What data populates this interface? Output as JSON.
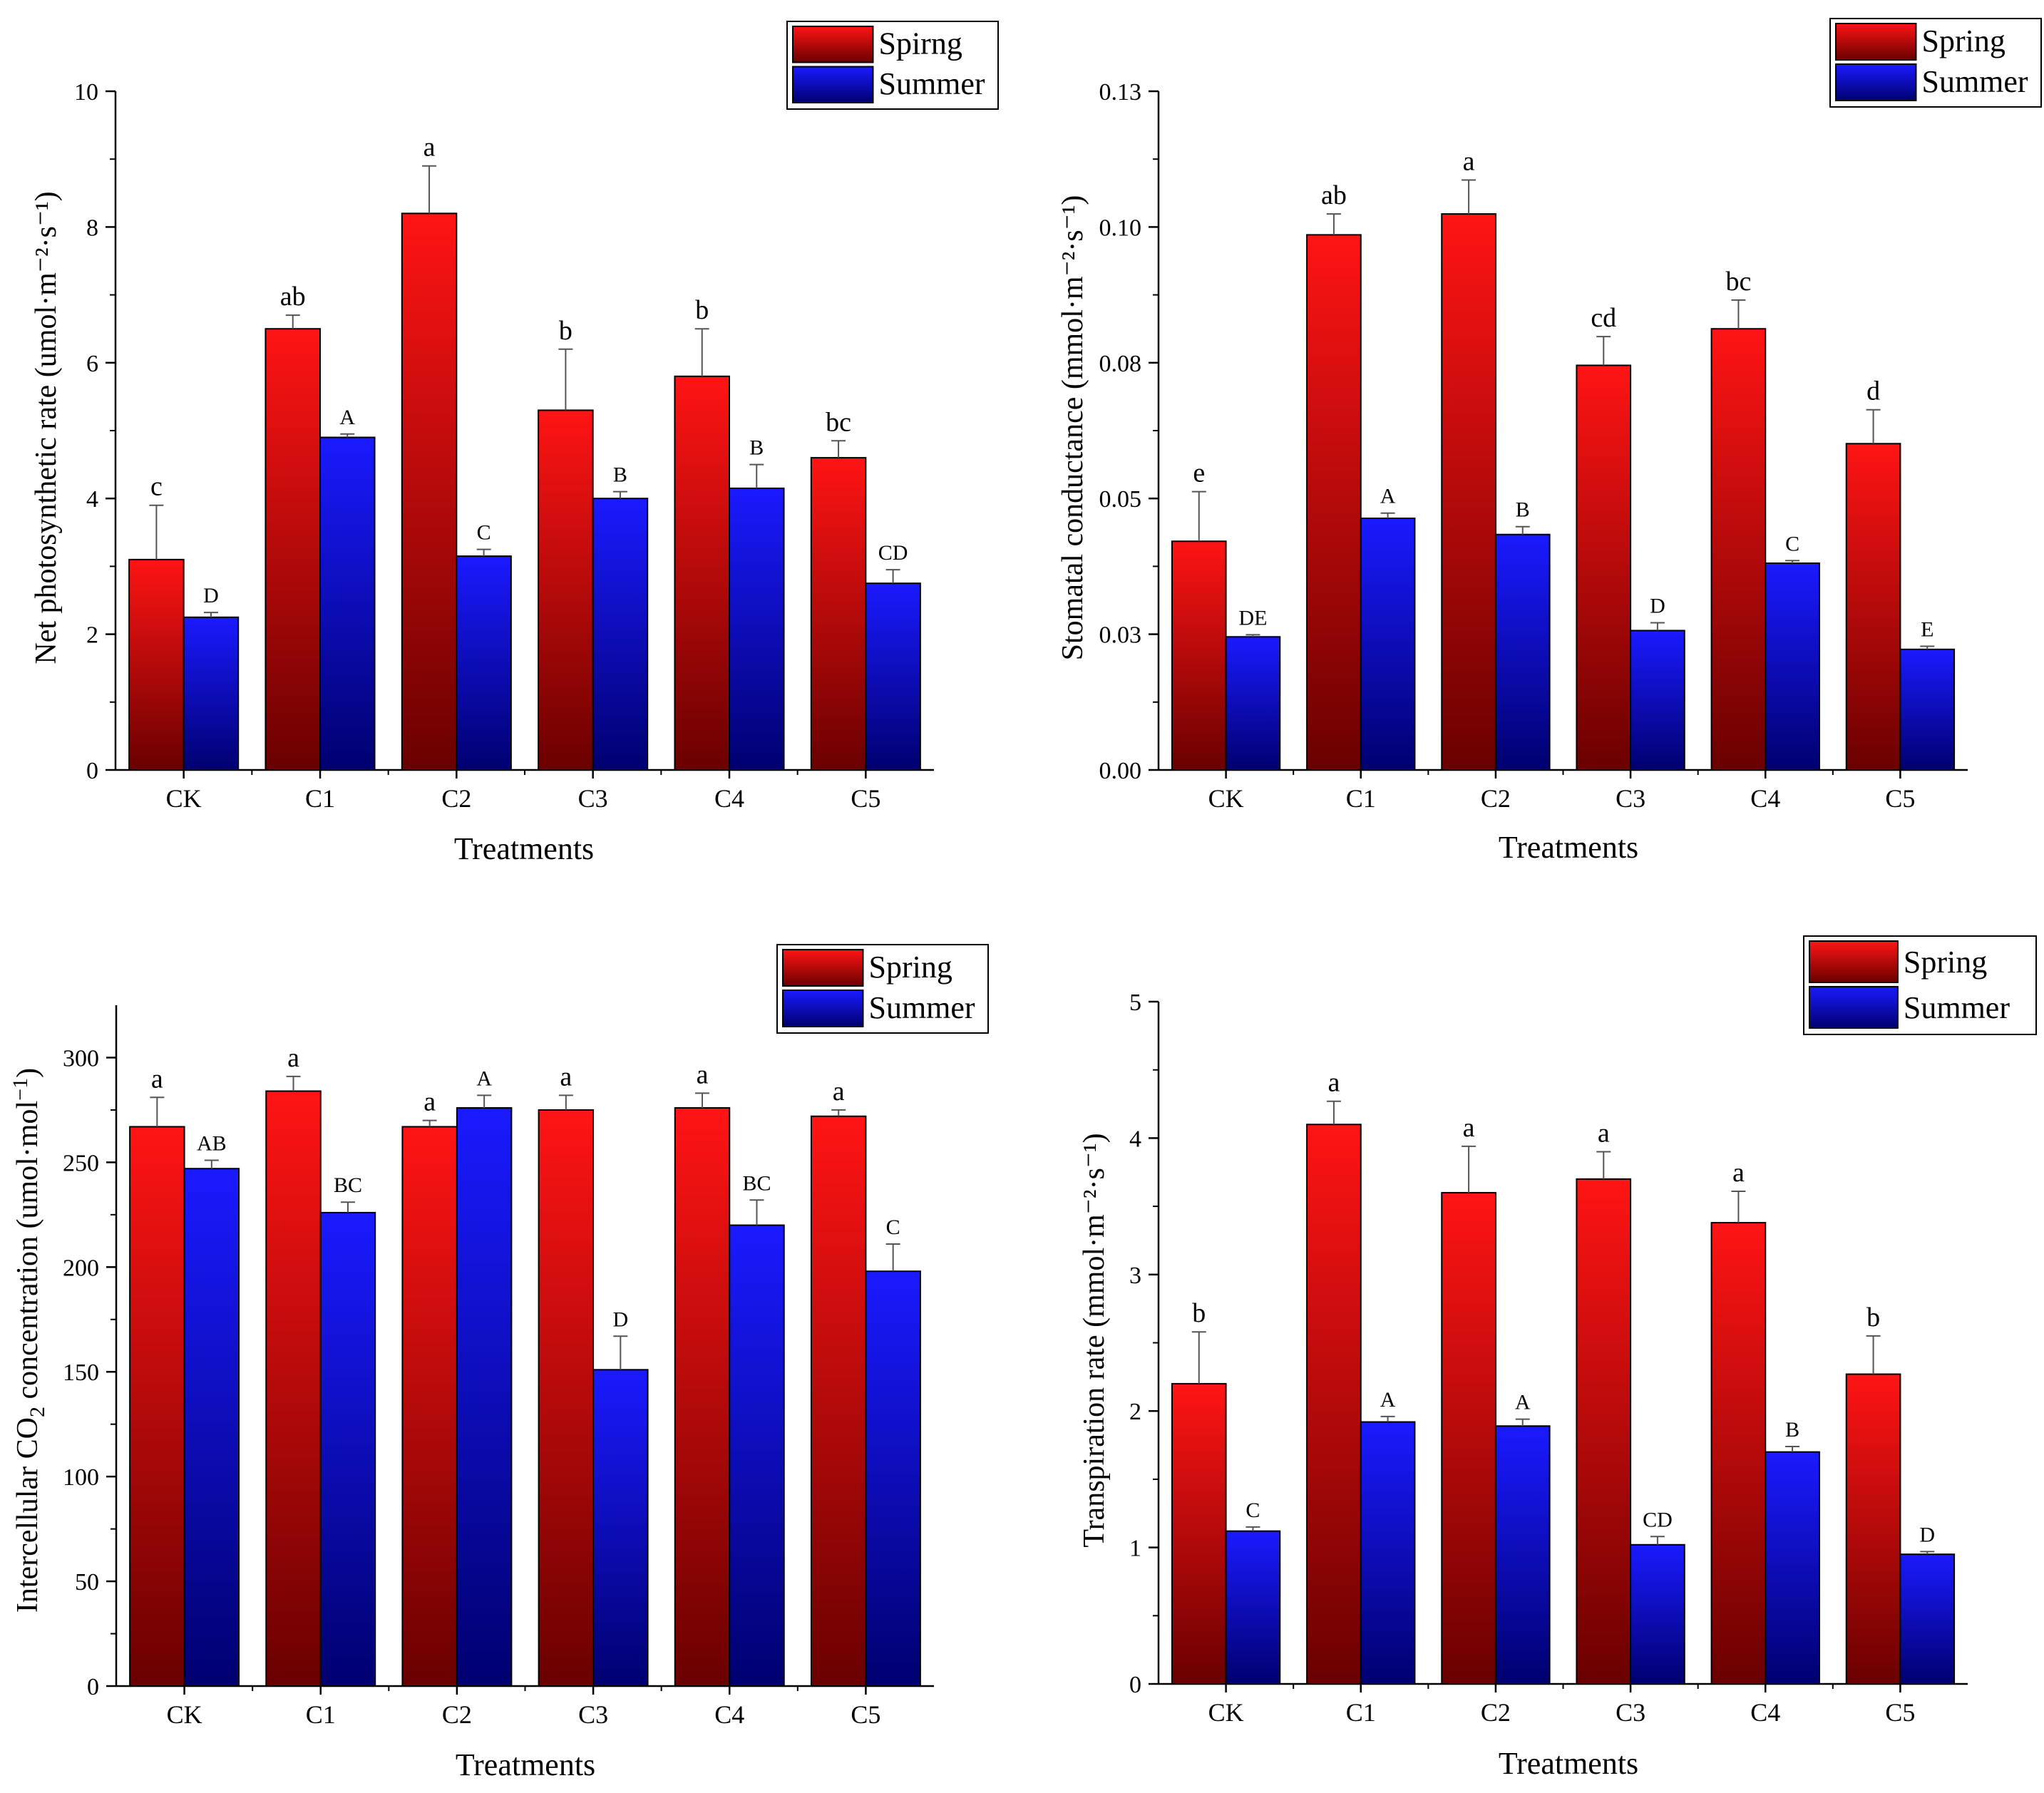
{
  "chart_data": [
    {
      "id": "panel-net-photosynthetic-rate",
      "type": "bar",
      "xlabel": "Treatments",
      "ylabel": "Net photosynthetic rate (umol·m⁻²·s⁻¹)",
      "categories": [
        "CK",
        "C1",
        "C2",
        "C3",
        "C4",
        "C5"
      ],
      "ylim": [
        0,
        10
      ],
      "yticks": [
        0,
        2,
        4,
        6,
        8,
        10
      ],
      "ytick_labels": [
        "0",
        "2",
        "4",
        "6",
        "8",
        "10"
      ],
      "legend": {
        "position": "top-right",
        "entries": [
          "Spirng",
          "Summer"
        ]
      },
      "series": [
        {
          "name": "Spirng",
          "color": "#e81010",
          "values": [
            3.1,
            6.5,
            8.2,
            5.3,
            5.8,
            4.6
          ],
          "errors": [
            0.8,
            0.2,
            0.7,
            0.9,
            0.7,
            0.25
          ],
          "letters": [
            "c",
            "ab",
            "a",
            "b",
            "b",
            "bc"
          ]
        },
        {
          "name": "Summer",
          "color": "#1010e8",
          "values": [
            2.25,
            4.9,
            3.15,
            4.0,
            4.15,
            2.75
          ],
          "errors": [
            0.07,
            0.05,
            0.1,
            0.1,
            0.35,
            0.2
          ],
          "letters": [
            "D",
            "A",
            "C",
            "B",
            "B",
            "CD"
          ]
        }
      ]
    },
    {
      "id": "panel-stomatal-conductance",
      "type": "bar",
      "xlabel": "Treatments",
      "ylabel": "Stomatal conductance (mmol·m⁻²·s⁻¹)",
      "categories": [
        "CK",
        "C1",
        "C2",
        "C3",
        "C4",
        "C5"
      ],
      "ylim": [
        0,
        0.13
      ],
      "yticks": [
        0,
        0.026,
        0.052,
        0.078,
        0.104,
        0.13
      ],
      "ytick_labels": [
        "0.00",
        "0.03",
        "0.05",
        "0.08",
        "0.10",
        "0.13"
      ],
      "legend": {
        "position": "top-right",
        "entries": [
          "Spring",
          "Summer"
        ]
      },
      "series": [
        {
          "name": "Spring",
          "color": "#e81010",
          "values": [
            0.0438,
            0.1025,
            0.1065,
            0.0775,
            0.0845,
            0.0625
          ],
          "errors": [
            0.0095,
            0.004,
            0.0065,
            0.0055,
            0.0055,
            0.0065
          ],
          "letters": [
            "e",
            "ab",
            "a",
            "cd",
            "bc",
            "d"
          ]
        },
        {
          "name": "Summer",
          "color": "#1010e8",
          "values": [
            0.0255,
            0.0482,
            0.0451,
            0.0267,
            0.0396,
            0.0231
          ],
          "errors": [
            0.0004,
            0.001,
            0.0015,
            0.0015,
            0.0005,
            0.0006
          ],
          "letters": [
            "DE",
            "A",
            "B",
            "D",
            "C",
            "E"
          ]
        }
      ]
    },
    {
      "id": "panel-intercellular-co2",
      "type": "bar",
      "xlabel": "Treatments",
      "ylabel_main": "Intercellular CO",
      "ylabel_sub": "2",
      "ylabel_tail": " concentration (umol·mol",
      "ylabel_sup": "−1",
      "ylabel_close": ")",
      "categories": [
        "CK",
        "C1",
        "C2",
        "C3",
        "C4",
        "C5"
      ],
      "ylim": [
        0,
        325
      ],
      "yticks": [
        0,
        50,
        100,
        150,
        200,
        250,
        300
      ],
      "ytick_labels": [
        "0",
        "50",
        "100",
        "150",
        "200",
        "250",
        "300"
      ],
      "legend": {
        "position": "top-right",
        "entries": [
          "Spring",
          "Summer"
        ]
      },
      "series": [
        {
          "name": "Spring",
          "color": "#e81010",
          "values": [
            267,
            284,
            267,
            275,
            276,
            272
          ],
          "errors": [
            14,
            7,
            3,
            7,
            7,
            3
          ],
          "letters": [
            "a",
            "a",
            "a",
            "a",
            "a",
            "a"
          ]
        },
        {
          "name": "Summer",
          "color": "#1010e8",
          "values": [
            247,
            226,
            276,
            151,
            220,
            198
          ],
          "errors": [
            4,
            5,
            6,
            16,
            12,
            13
          ],
          "letters": [
            "AB",
            "BC",
            "A",
            "D",
            "BC",
            "C"
          ]
        }
      ]
    },
    {
      "id": "panel-transpiration-rate",
      "type": "bar",
      "xlabel": "Treatments",
      "ylabel": "Transpiration rate (mmol·m⁻²·s⁻¹)",
      "categories": [
        "CK",
        "C1",
        "C2",
        "C3",
        "C4",
        "C5"
      ],
      "ylim": [
        0,
        5
      ],
      "yticks": [
        0,
        1,
        2,
        3,
        4,
        5
      ],
      "ytick_labels": [
        "0",
        "1",
        "2",
        "3",
        "4",
        "5"
      ],
      "legend": {
        "position": "top-right",
        "entries": [
          "Spring",
          "Summer"
        ]
      },
      "series": [
        {
          "name": "Spring",
          "color": "#e81010",
          "values": [
            2.2,
            4.1,
            3.6,
            3.7,
            3.38,
            2.27
          ],
          "errors": [
            0.38,
            0.17,
            0.34,
            0.2,
            0.23,
            0.28
          ],
          "letters": [
            "b",
            "a",
            "a",
            "a",
            "a",
            "b"
          ]
        },
        {
          "name": "Summer",
          "color": "#1010e8",
          "values": [
            1.12,
            1.92,
            1.89,
            1.02,
            1.7,
            0.95
          ],
          "errors": [
            0.03,
            0.04,
            0.05,
            0.06,
            0.04,
            0.02
          ],
          "letters": [
            "C",
            "A",
            "A",
            "CD",
            "B",
            "D"
          ]
        }
      ]
    }
  ]
}
